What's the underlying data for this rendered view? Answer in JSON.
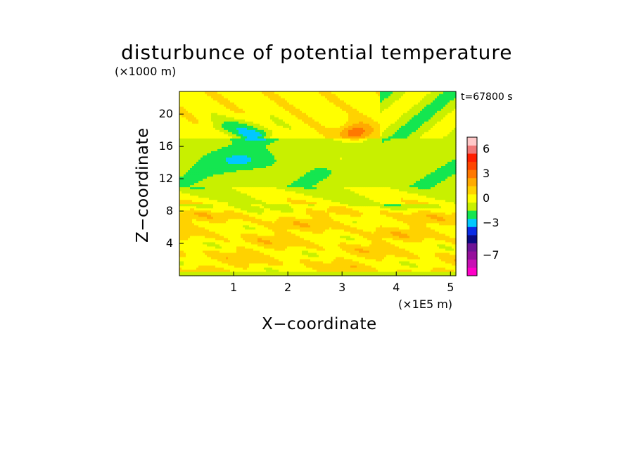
{
  "chart_data": {
    "type": "heatmap",
    "title": "disturbunce of potential temperature",
    "time_label": "t=67800 s",
    "xlabel": "X−coordinate",
    "ylabel": "Z−coordinate",
    "x_unit": "(×1E5 m)",
    "y_unit": "(×1000 m)",
    "xlim": [
      0,
      5.1
    ],
    "ylim": [
      0,
      22.8
    ],
    "x_ticks": [
      "1",
      "2",
      "3",
      "4",
      "5"
    ],
    "y_ticks": [
      "4",
      "8",
      "12",
      "16",
      "20"
    ],
    "colorbar": {
      "levels": [
        -9,
        -8,
        -7,
        -6,
        -5,
        -4,
        -3,
        -2,
        -1,
        0,
        1,
        2,
        3,
        4,
        5,
        6,
        7
      ],
      "tick_labels": [
        "6",
        "3",
        "0",
        "−3",
        "−7"
      ],
      "tick_values": [
        6,
        3,
        0,
        -3,
        -7
      ],
      "colors": [
        "#ff00c8",
        "#c810b4",
        "#96109c",
        "#6e1496",
        "#0a0a82",
        "#0a2ce6",
        "#00c8ff",
        "#14e650",
        "#c8f000",
        "#ffff00",
        "#ffd200",
        "#ffaa00",
        "#ff7800",
        "#ff4600",
        "#ff1e00",
        "#f07878",
        "#ffc8c8"
      ]
    },
    "fields": [
      {
        "name": "upper_yellow_band",
        "z_range": [
          17,
          22.8
        ],
        "value": 0.5
      },
      {
        "name": "green_band",
        "z_range": [
          11,
          17
        ],
        "value": -0.5
      },
      {
        "name": "warm_lower_layer",
        "z_range": [
          0.4,
          9
        ],
        "value": 1.5
      },
      {
        "name": "cold_anomaly",
        "x": 1.4,
        "z": 17.5,
        "value": -4
      },
      {
        "name": "warm_anomaly",
        "x": 3.25,
        "z": 17.8,
        "value": 4
      }
    ],
    "grid": false,
    "legend": "right"
  }
}
